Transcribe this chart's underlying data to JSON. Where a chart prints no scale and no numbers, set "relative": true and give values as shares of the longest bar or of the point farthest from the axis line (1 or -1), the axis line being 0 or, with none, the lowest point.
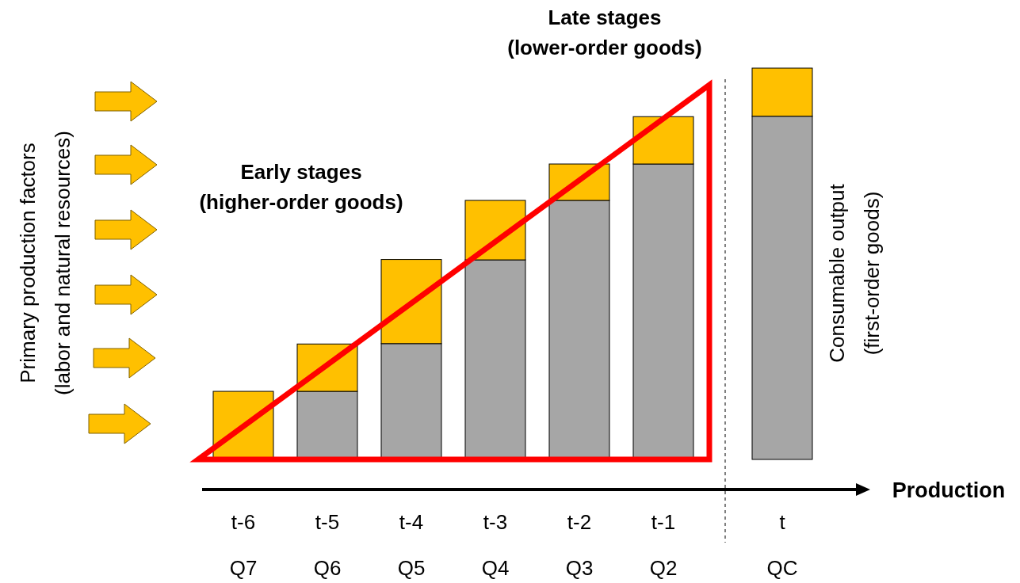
{
  "chart_data": {
    "type": "bar",
    "stacked": true,
    "relative": true,
    "tick_labels": "x",
    "categories": [
      "t-6\nQ7",
      "t-5\nQ6",
      "t-4\nQ5",
      "t-3\nQ4",
      "t-2\nQ3",
      "t-1\nQ2",
      "t\nQC"
    ],
    "series": [
      {
        "color": "#a6a6a6",
        "values": [
          0,
          0.174,
          0.296,
          0.51,
          0.662,
          0.755,
          0.877
        ]
      },
      {
        "color": "#ffc000",
        "values": [
          0.174,
          0.121,
          0.215,
          0.152,
          0.093,
          0.121,
          0.123
        ]
      }
    ],
    "xlabel": "Production",
    "annotations": [
      "Early stages\n(higher-order goods)",
      "Late stages\n(lower-order goods)",
      "Consumable output\n(first-order goods)",
      "Primary production factors\n(labor and natural resources)"
    ]
  }
}
